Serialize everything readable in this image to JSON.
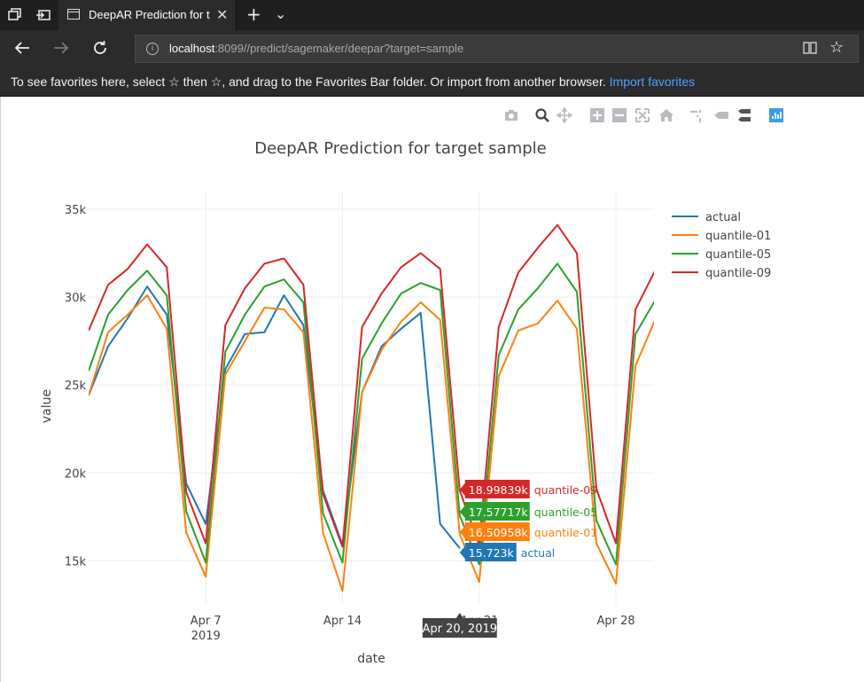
{
  "browser": {
    "tab_title": "DeepAR Prediction for t",
    "tab_close": "✕",
    "new_tab": "+",
    "tab_list": "⌄",
    "url_host": "localhost",
    "url_rest": ":8099//predict/sagemaker/deepar?target=sample",
    "favorites_message": "To see favorites here, select ☆ then ☆, and drag to the Favorites Bar folder. Or import from another browser.",
    "import_favorites": "Import favorites",
    "icons": [
      "tab-manager-icon",
      "set-aside-tabs-icon",
      "page-icon",
      "back-arrow-icon",
      "forward-arrow-icon",
      "refresh-icon",
      "info-icon",
      "reading-view-icon",
      "favorite-star-icon"
    ]
  },
  "modebar": {
    "icons": [
      "camera-icon",
      "zoom-icon",
      "pan-icon",
      "zoom-in-icon",
      "zoom-out-icon",
      "autoscale-icon",
      "reset-axes-icon",
      "spike-lines-icon",
      "hover-closest-icon",
      "hover-compare-icon",
      "plotly-logo-icon"
    ]
  },
  "chart_data": {
    "type": "line",
    "title": "DeepAR Prediction for target sample",
    "xlabel": "date",
    "ylabel": "value",
    "x_ticks": [
      "Apr 7\n2019",
      "Apr 14",
      "Apr 21",
      "Apr 28"
    ],
    "y_ticks": [
      "15k",
      "20k",
      "25k",
      "30k",
      "35k"
    ],
    "ylim": [
      12500,
      36000
    ],
    "x_start": "2019-04-01",
    "legend_position": "top-right",
    "series": [
      {
        "name": "actual",
        "color": "#1f77b4",
        "x": [
          0,
          1,
          2,
          3,
          4,
          5,
          6,
          7,
          8,
          9,
          10,
          11,
          12,
          13,
          14,
          15,
          16,
          17,
          18,
          19
        ],
        "y": [
          24400,
          27200,
          28800,
          30600,
          29000,
          19400,
          17100,
          25900,
          27900,
          28000,
          30100,
          28400,
          19000,
          15900,
          24600,
          27200,
          28200,
          29100,
          17100,
          15723
        ]
      },
      {
        "name": "quantile-01",
        "color": "#ff7f0e",
        "x": [
          0,
          1,
          2,
          3,
          4,
          5,
          6,
          7,
          8,
          9,
          10,
          11,
          12,
          13,
          14,
          15,
          16,
          17,
          18,
          19,
          20,
          21,
          22,
          23,
          24,
          25,
          26,
          27,
          28,
          29
        ],
        "y": [
          24400,
          28000,
          29000,
          30100,
          28200,
          16600,
          14100,
          25600,
          27500,
          29400,
          29300,
          28000,
          16600,
          13300,
          24600,
          27000,
          28600,
          29700,
          28700,
          16509.58,
          13800,
          25500,
          28100,
          28500,
          29800,
          28200,
          16000,
          13700,
          26100,
          28700
        ]
      },
      {
        "name": "quantile-05",
        "color": "#2ca02c",
        "x": [
          0,
          1,
          2,
          3,
          4,
          5,
          6,
          7,
          8,
          9,
          10,
          11,
          12,
          13,
          14,
          15,
          16,
          17,
          18,
          19,
          20,
          21,
          22,
          23,
          24,
          25,
          26,
          27,
          28,
          29
        ],
        "y": [
          25800,
          29000,
          30400,
          31500,
          30100,
          17800,
          14900,
          26900,
          29000,
          30600,
          31000,
          29700,
          17700,
          14900,
          26500,
          28500,
          30200,
          30800,
          30400,
          17577.17,
          14800,
          26700,
          29300,
          30500,
          31900,
          30300,
          17300,
          14800,
          27900,
          29800
        ]
      },
      {
        "name": "quantile-09",
        "color": "#d62728",
        "x": [
          0,
          1,
          2,
          3,
          4,
          5,
          6,
          7,
          8,
          9,
          10,
          11,
          12,
          13,
          14,
          15,
          16,
          17,
          18,
          19,
          20,
          21,
          22,
          23,
          24,
          25,
          26,
          27,
          28,
          29
        ],
        "y": [
          28100,
          30700,
          31600,
          33000,
          31700,
          18900,
          16000,
          28400,
          30500,
          31900,
          32200,
          30700,
          18800,
          15800,
          28300,
          30200,
          31700,
          32500,
          31600,
          18998.39,
          15900,
          28300,
          31400,
          32800,
          34100,
          32500,
          19100,
          16000,
          29300,
          31500
        ]
      }
    ],
    "hover": {
      "x_label": "Apr 20, 2019",
      "items": [
        {
          "value": "18.99839k",
          "name": "quantile-09",
          "color": "#d62728"
        },
        {
          "value": "17.57717k",
          "name": "quantile-05",
          "color": "#2ca02c"
        },
        {
          "value": "16.50958k",
          "name": "quantile-01",
          "color": "#ff7f0e"
        },
        {
          "value": "15.723k",
          "name": "actual",
          "color": "#1f77b4"
        }
      ]
    }
  }
}
